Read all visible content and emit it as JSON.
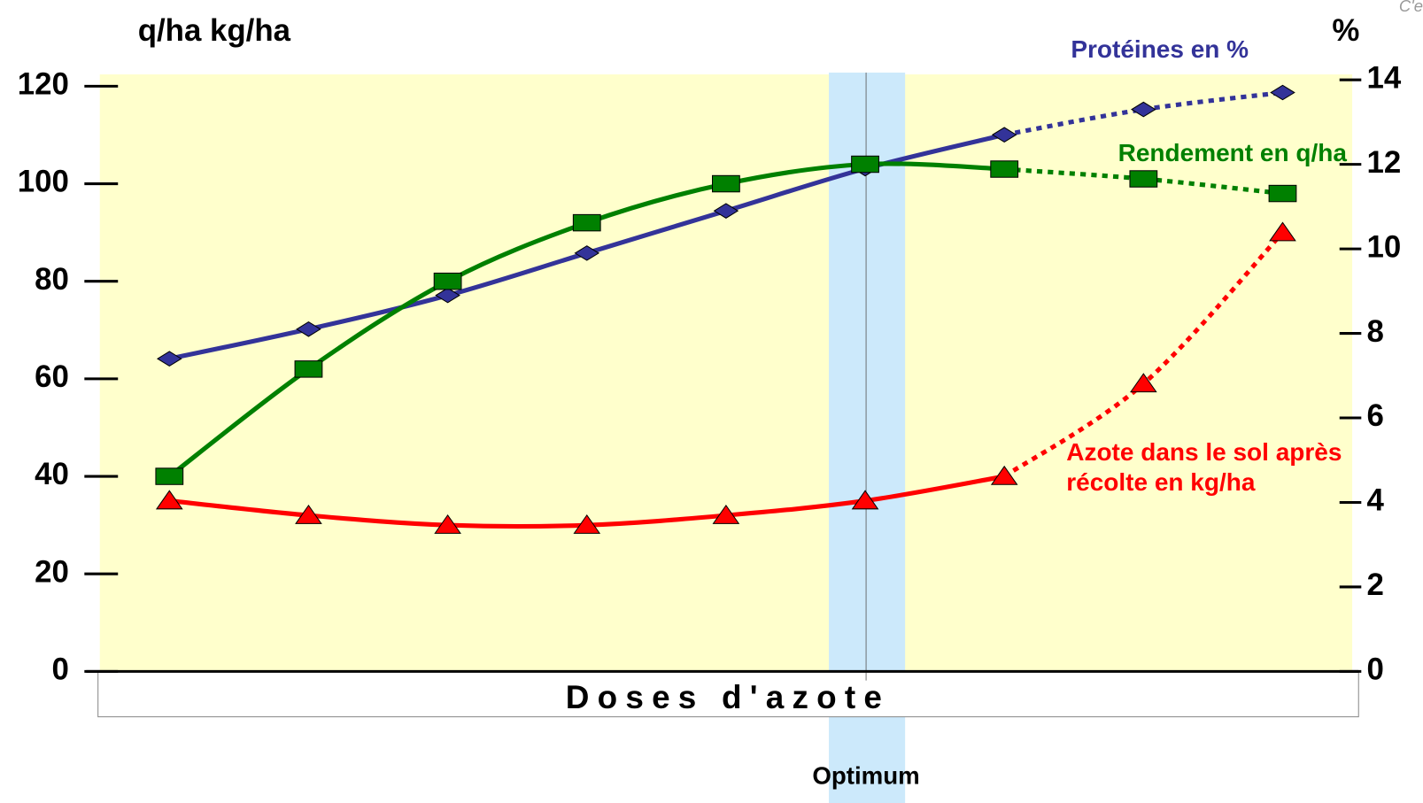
{
  "chart_data": {
    "type": "line",
    "note": "C'e",
    "ylabel": "q/ha kg/ha",
    "y2label": "%",
    "xlabel": "Doses d'azote",
    "optimum_label": "Optimum",
    "optimum_index": 5,
    "dashed_from_index": 6,
    "categories": [
      null,
      null,
      null,
      null,
      null,
      null,
      null,
      null,
      null
    ],
    "ylim": [
      0,
      120
    ],
    "yticks": [
      0,
      20,
      40,
      60,
      80,
      100,
      120
    ],
    "y2lim": [
      0,
      14
    ],
    "y2ticks": [
      0,
      2,
      4,
      6,
      8,
      10,
      12,
      14
    ],
    "series": [
      {
        "name": "Protéines en %",
        "color": "#333399",
        "marker": "diamond",
        "axis": "y2",
        "values": [
          7.4,
          8.1,
          8.9,
          9.9,
          10.9,
          11.9,
          12.7,
          13.3,
          13.7
        ]
      },
      {
        "name": "Rendement en q/ha",
        "color": "#008000",
        "marker": "square",
        "axis": "y",
        "values": [
          40,
          62,
          80,
          92,
          100,
          104,
          103,
          101,
          98
        ]
      },
      {
        "name": "Azote dans le sol après récolte en kg/ha",
        "color": "#ff0000",
        "marker": "triangle",
        "axis": "y",
        "values": [
          35,
          32,
          30,
          30,
          32,
          35,
          40,
          59,
          90
        ]
      }
    ]
  }
}
